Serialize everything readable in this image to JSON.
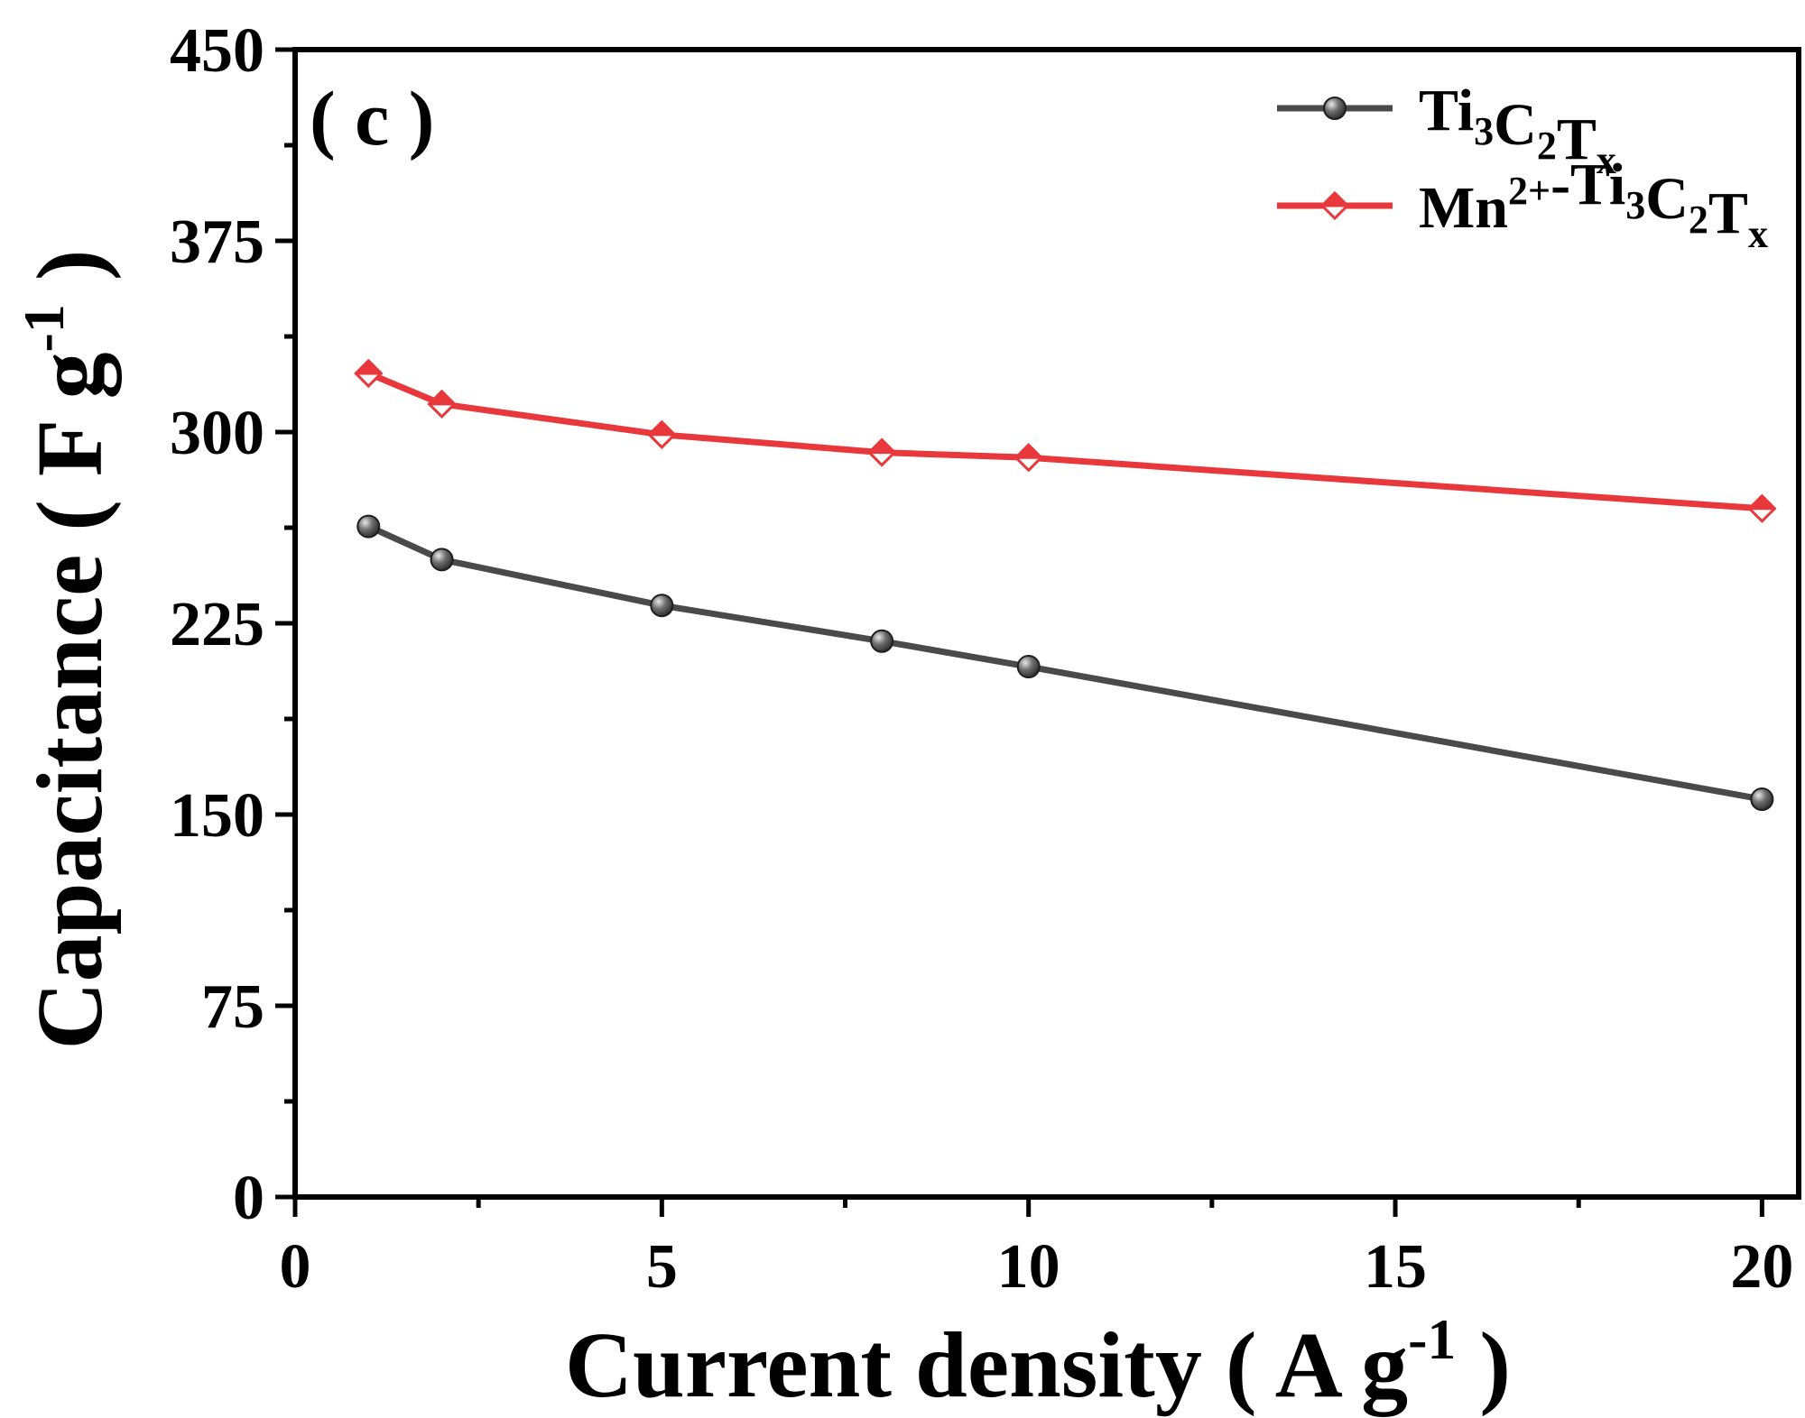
{
  "panel_label": "( c )",
  "chart_data": {
    "type": "line",
    "title": "",
    "xlabel": {
      "main": "Current density ( A g",
      "sup": "-1",
      "end": " )"
    },
    "ylabel": {
      "main": "Capacitance ( F g",
      "sup": "-1",
      "end": " )"
    },
    "xlim": [
      0,
      20.5
    ],
    "ylim": [
      0,
      450
    ],
    "xticks": [
      0,
      5,
      10,
      15,
      20
    ],
    "xminor": [
      2.5,
      7.5,
      12.5,
      17.5
    ],
    "yticks": [
      0,
      75,
      150,
      225,
      300,
      375,
      450
    ],
    "yminor": [
      37.5,
      112.5,
      187.5,
      262.5,
      337.5,
      412.5
    ],
    "x": [
      1,
      2,
      5,
      8,
      10,
      20
    ],
    "legend_position": "top-right",
    "series": [
      {
        "name": "Ti3C2Tx",
        "legend": [
          {
            "t": "Ti"
          },
          {
            "t": "3",
            "sub": true
          },
          {
            "t": "C"
          },
          {
            "t": "2",
            "sub": true
          },
          {
            "t": "T"
          },
          {
            "t": "x",
            "sub": true
          }
        ],
        "values": [
          263,
          250,
          232,
          218,
          208,
          156
        ],
        "color": "#4a4a4a",
        "marker": "sphere"
      },
      {
        "name": "Mn2+-Ti3C2Tx",
        "legend": [
          {
            "t": "Mn"
          },
          {
            "t": "2+",
            "sup": true
          },
          {
            "t": "-Ti"
          },
          {
            "t": "3",
            "sub": true
          },
          {
            "t": "C"
          },
          {
            "t": "2",
            "sub": true
          },
          {
            "t": "T"
          },
          {
            "t": "x",
            "sub": true
          }
        ],
        "values": [
          323,
          311,
          299,
          292,
          290,
          270
        ],
        "color": "#e8383b",
        "marker": "half-diamond"
      }
    ]
  }
}
